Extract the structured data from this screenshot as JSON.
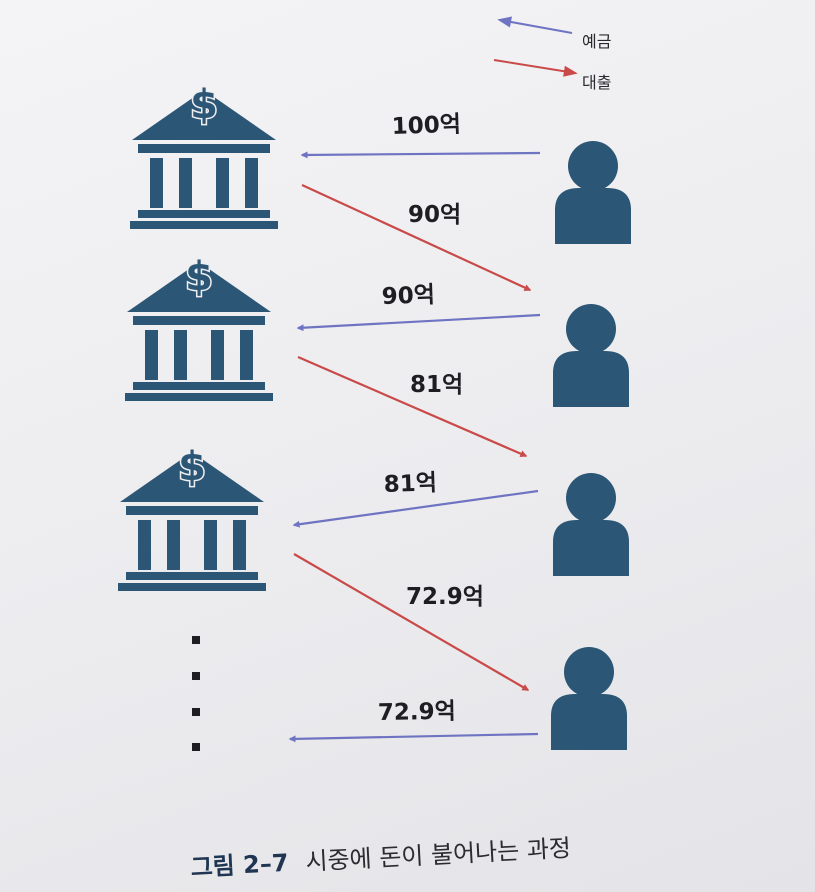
{
  "colors": {
    "deposit": "#6f74c2",
    "loan": "#c94a48",
    "icon": "#2b5675"
  },
  "icons": {
    "bank": "bank-dollar-icon",
    "person": "person-icon"
  },
  "legend": {
    "deposit_label": "예금",
    "loan_label": "대출"
  },
  "flows": [
    {
      "type": "deposit",
      "amount": "100억"
    },
    {
      "type": "loan",
      "amount": "90억"
    },
    {
      "type": "deposit",
      "amount": "90억"
    },
    {
      "type": "loan",
      "amount": "81억"
    },
    {
      "type": "deposit",
      "amount": "81억"
    },
    {
      "type": "loan",
      "amount": "72.9억"
    },
    {
      "type": "deposit",
      "amount": "72.9억"
    }
  ],
  "caption": {
    "label": "그림 2–7",
    "text": "시중에 돈이 불어나는 과정"
  }
}
